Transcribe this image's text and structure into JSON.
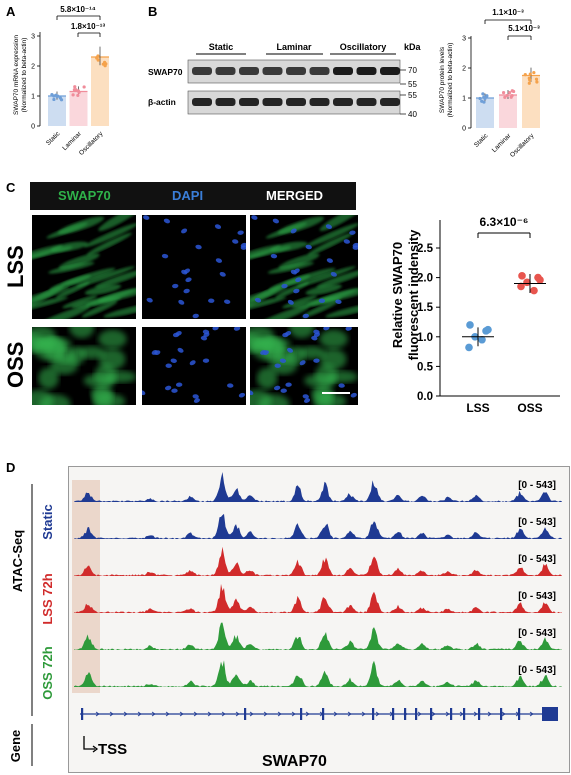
{
  "panels": {
    "A": "A",
    "B": "B",
    "C": "C",
    "D": "D"
  },
  "panelA": {
    "ylabel_line1": "SWAP70 mRNA expression",
    "ylabel_line2": "(Normalized to beta-actin)",
    "yticks": [
      "0",
      "1",
      "2",
      "3"
    ],
    "categories": [
      "Static",
      "Laminar",
      "Oscillatory"
    ],
    "pvals": [
      "5.8×10⁻¹⁴",
      "1.8×10⁻¹³"
    ],
    "means": [
      1.0,
      1.15,
      2.3
    ],
    "colors": [
      "#6f9fd8",
      "#f08c9a",
      "#f5a24b"
    ]
  },
  "panelB": {
    "blot_groups": [
      "Static",
      "Laminar",
      "Oscillatory"
    ],
    "kda": "kDa",
    "row_labels": [
      "SWAP70",
      "β-actin"
    ],
    "markers": [
      "70",
      "55",
      "55",
      "40"
    ],
    "ylabel_line1": "SWAP70 protein levels",
    "ylabel_line2": "(Normalized to beta-actin)",
    "yticks": [
      "0",
      "1",
      "2",
      "3"
    ],
    "categories": [
      "Static",
      "Laminar",
      "Oscillatory"
    ],
    "pvals": [
      "1.1×10⁻³",
      "5.1×10⁻³"
    ],
    "means": [
      1.0,
      1.1,
      1.75
    ]
  },
  "panelC": {
    "channels": [
      "SWAP70",
      "DAPI",
      "MERGED"
    ],
    "channel_colors": [
      "#2fb24a",
      "#3a7ed8",
      "#ffffff"
    ],
    "rows": [
      "LSS",
      "OSS"
    ],
    "chart_data": {
      "type": "scatter",
      "categories": [
        "LSS",
        "OSS"
      ],
      "ylabel_line1": "Relative SWAP70",
      "ylabel_line2": "fluorescent indensity",
      "yticks": [
        "0.0",
        "0.5",
        "1.0",
        "1.5",
        "2.0",
        "2.5"
      ],
      "ylim": [
        0,
        2.5
      ],
      "pval": "6.3×10⁻⁶",
      "series": [
        {
          "values": [
            1.2,
            1.1,
            1.0,
            0.82,
            0.95,
            1.12
          ]
        },
        {
          "values": [
            2.03,
            2.0,
            1.92,
            1.85,
            1.78,
            1.96
          ]
        }
      ],
      "means": [
        1.0,
        1.9
      ],
      "colors": [
        "#5a9bd5",
        "#e8554e"
      ]
    }
  },
  "panelD": {
    "assay": "ATAC-Seq",
    "tracks": [
      "Static",
      "LSS 72h",
      "OSS 72h"
    ],
    "track_colors": [
      "#1f3a93",
      "#d12b2b",
      "#2e9a3a"
    ],
    "range": "[0 - 543]",
    "gene_label": "Gene",
    "tss": "TSS",
    "gene_name": "SWAP70"
  }
}
